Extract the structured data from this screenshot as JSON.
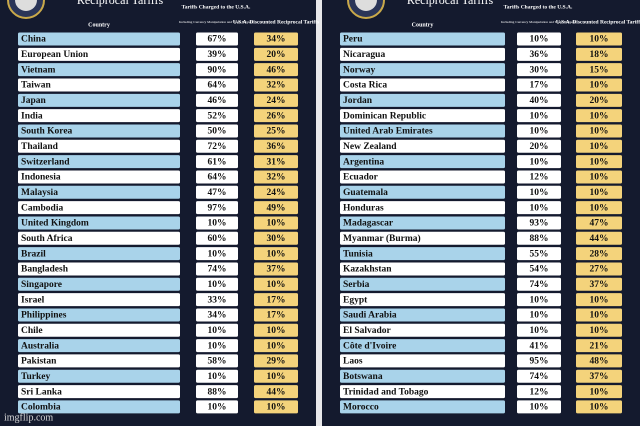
{
  "panels": [
    {
      "title": "Reciprocal Tariffs",
      "headers": [
        "Country",
        "Tariffs Charged to the U.S.A.",
        "Including Currency Manipulation and Trade Barriers",
        "U.S.A. Discounted Reciprocal Tariffs"
      ],
      "rows": [
        [
          "China",
          "67%",
          "34%"
        ],
        [
          "European Union",
          "39%",
          "20%"
        ],
        [
          "Vietnam",
          "90%",
          "46%"
        ],
        [
          "Taiwan",
          "64%",
          "32%"
        ],
        [
          "Japan",
          "46%",
          "24%"
        ],
        [
          "India",
          "52%",
          "26%"
        ],
        [
          "South Korea",
          "50%",
          "25%"
        ],
        [
          "Thailand",
          "72%",
          "36%"
        ],
        [
          "Switzerland",
          "61%",
          "31%"
        ],
        [
          "Indonesia",
          "64%",
          "32%"
        ],
        [
          "Malaysia",
          "47%",
          "24%"
        ],
        [
          "Cambodia",
          "97%",
          "49%"
        ],
        [
          "United Kingdom",
          "10%",
          "10%"
        ],
        [
          "South Africa",
          "60%",
          "30%"
        ],
        [
          "Brazil",
          "10%",
          "10%"
        ],
        [
          "Bangladesh",
          "74%",
          "37%"
        ],
        [
          "Singapore",
          "10%",
          "10%"
        ],
        [
          "Israel",
          "33%",
          "17%"
        ],
        [
          "Philippines",
          "34%",
          "17%"
        ],
        [
          "Chile",
          "10%",
          "10%"
        ],
        [
          "Australia",
          "10%",
          "10%"
        ],
        [
          "Pakistan",
          "58%",
          "29%"
        ],
        [
          "Turkey",
          "10%",
          "10%"
        ],
        [
          "Sri Lanka",
          "88%",
          "44%"
        ],
        [
          "Colombia",
          "10%",
          "10%"
        ]
      ]
    },
    {
      "title": "Reciprocal Tariffs",
      "headers": [
        "Country",
        "Tariffs Charged to the U.S.A.",
        "Including Currency Manipulation and Trade Barriers",
        "U.S.A. Discounted Reciprocal Tariffs"
      ],
      "rows": [
        [
          "Peru",
          "10%",
          "10%"
        ],
        [
          "Nicaragua",
          "36%",
          "18%"
        ],
        [
          "Norway",
          "30%",
          "15%"
        ],
        [
          "Costa Rica",
          "17%",
          "10%"
        ],
        [
          "Jordan",
          "40%",
          "20%"
        ],
        [
          "Dominican Republic",
          "10%",
          "10%"
        ],
        [
          "United Arab Emirates",
          "10%",
          "10%"
        ],
        [
          "New Zealand",
          "20%",
          "10%"
        ],
        [
          "Argentina",
          "10%",
          "10%"
        ],
        [
          "Ecuador",
          "12%",
          "10%"
        ],
        [
          "Guatemala",
          "10%",
          "10%"
        ],
        [
          "Honduras",
          "10%",
          "10%"
        ],
        [
          "Madagascar",
          "93%",
          "47%"
        ],
        [
          "Myanmar (Burma)",
          "88%",
          "44%"
        ],
        [
          "Tunisia",
          "55%",
          "28%"
        ],
        [
          "Kazakhstan",
          "54%",
          "27%"
        ],
        [
          "Serbia",
          "74%",
          "37%"
        ],
        [
          "Egypt",
          "10%",
          "10%"
        ],
        [
          "Saudi Arabia",
          "10%",
          "10%"
        ],
        [
          "El Salvador",
          "10%",
          "10%"
        ],
        [
          "Côte d'Ivoire",
          "41%",
          "21%"
        ],
        [
          "Laos",
          "95%",
          "48%"
        ],
        [
          "Botswana",
          "74%",
          "37%"
        ],
        [
          "Trinidad and Tobago",
          "12%",
          "10%"
        ],
        [
          "Morocco",
          "10%",
          "10%"
        ]
      ]
    }
  ],
  "watermark": "imgflip.com"
}
